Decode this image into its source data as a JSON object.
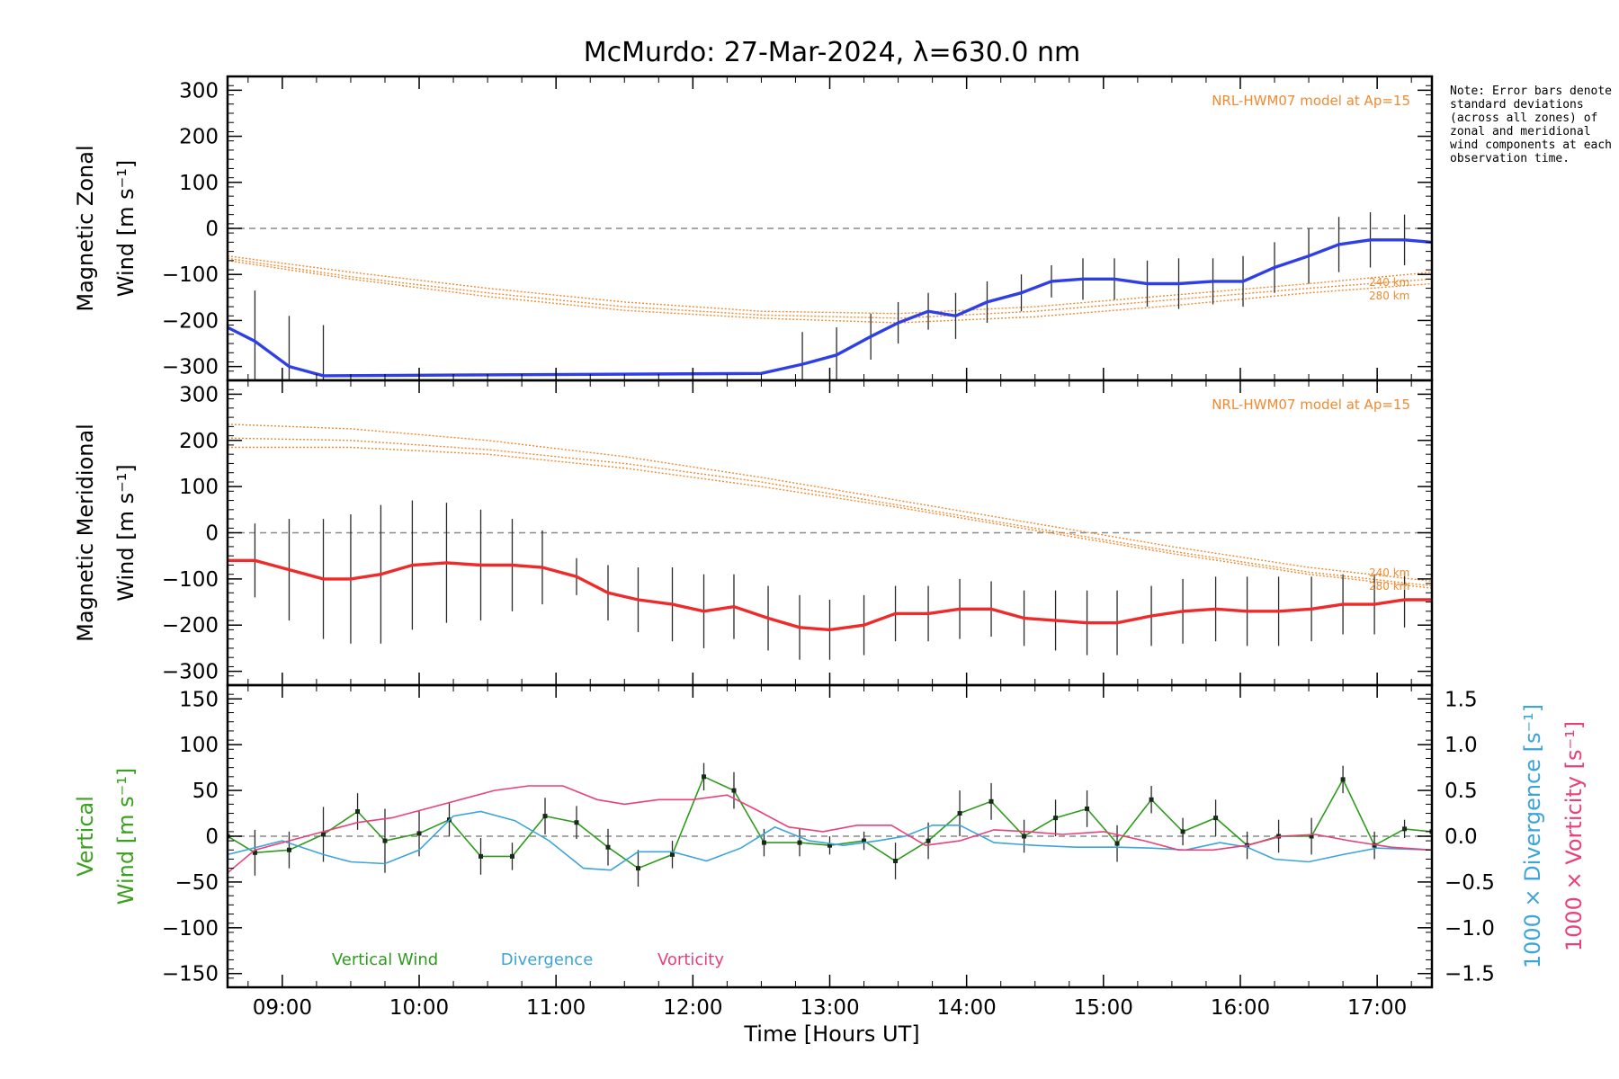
{
  "chart_data": {
    "type": "line",
    "title": "McMurdo: 27-Mar-2024, λ=630.0 nm",
    "xlabel": "Time [Hours UT]",
    "xlim": [
      8.6,
      17.4
    ],
    "xticks": [
      "09:00",
      "10:00",
      "11:00",
      "12:00",
      "13:00",
      "14:00",
      "15:00",
      "16:00",
      "17:00"
    ],
    "note": "Note: Error bars denote standard deviations (across all zones) of zonal and meridional wind components at each observation time.",
    "panels": [
      {
        "id": "zonal",
        "ylabel_line1": "Magnetic Zonal",
        "ylabel_line2": "Wind [m s⁻¹]",
        "ylim": [
          -330,
          330
        ],
        "yticks": [
          "300",
          "200",
          "100",
          "0",
          "−100",
          "−200",
          "−300"
        ],
        "model_label": "NRL-HWM07 model at Ap=15",
        "model_alt_labels": [
          "240 km",
          "280 km"
        ],
        "series": [
          {
            "name": "Magnetic Zonal Wind",
            "color": "#2f3fe6",
            "x": [
              8.6,
              8.8,
              9.05,
              9.3,
              12.5,
              12.8,
              13.05,
              13.3,
              13.5,
              13.72,
              13.92,
              14.15,
              14.4,
              14.62,
              14.85,
              15.08,
              15.32,
              15.55,
              15.8,
              16.02,
              16.25,
              16.5,
              16.72,
              16.95,
              17.2,
              17.4
            ],
            "y": [
              -215,
              -245,
              -300,
              -320,
              -315,
              -295,
              -275,
              -235,
              -205,
              -180,
              -190,
              -160,
              -140,
              -115,
              -110,
              -110,
              -120,
              -120,
              -115,
              -115,
              -85,
              -60,
              -35,
              -25,
              -25,
              -30
            ],
            "err": [
              0,
              110,
              110,
              110,
              0,
              70,
              60,
              50,
              45,
              40,
              50,
              45,
              40,
              35,
              45,
              45,
              50,
              55,
              50,
              55,
              55,
              60,
              60,
              60,
              55,
              50
            ]
          }
        ],
        "models": [
          {
            "x": [
              8.6,
              9.5,
              10.5,
              11.5,
              12.5,
              13.5,
              14.5,
              15.5,
              16.5,
              17.4
            ],
            "y": [
              -60,
              -95,
              -130,
              -160,
              -180,
              -185,
              -170,
              -145,
              -120,
              -95
            ]
          },
          {
            "x": [
              8.6,
              9.5,
              10.5,
              11.5,
              12.5,
              13.5,
              14.5,
              15.5,
              16.5,
              17.4
            ],
            "y": [
              -65,
              -105,
              -140,
              -170,
              -188,
              -195,
              -180,
              -155,
              -130,
              -110
            ]
          },
          {
            "x": [
              8.6,
              9.5,
              10.5,
              11.5,
              12.5,
              13.5,
              14.5,
              15.5,
              16.5,
              17.4
            ],
            "y": [
              -70,
              -110,
              -148,
              -178,
              -195,
              -205,
              -192,
              -168,
              -140,
              -120
            ]
          }
        ]
      },
      {
        "id": "meridional",
        "ylabel_line1": "Magnetic Meridional",
        "ylabel_line2": "Wind [m s⁻¹]",
        "ylim": [
          -330,
          330
        ],
        "yticks": [
          "300",
          "200",
          "100",
          "0",
          "−100",
          "−200",
          "−300"
        ],
        "model_label": "NRL-HWM07 model at Ap=15",
        "model_alt_labels": [
          "240 km",
          "280 km"
        ],
        "series": [
          {
            "name": "Magnetic Meridional Wind",
            "color": "#ee2a2a",
            "x": [
              8.6,
              8.8,
              9.05,
              9.3,
              9.5,
              9.72,
              9.95,
              10.2,
              10.45,
              10.68,
              10.9,
              11.15,
              11.38,
              11.6,
              11.85,
              12.08,
              12.3,
              12.55,
              12.78,
              13.0,
              13.25,
              13.48,
              13.72,
              13.95,
              14.18,
              14.42,
              14.65,
              14.88,
              15.1,
              15.35,
              15.58,
              15.82,
              16.05,
              16.28,
              16.52,
              16.75,
              16.98,
              17.2,
              17.4
            ],
            "y": [
              -60,
              -60,
              -80,
              -100,
              -100,
              -90,
              -70,
              -65,
              -70,
              -70,
              -75,
              -95,
              -130,
              -145,
              -155,
              -170,
              -160,
              -185,
              -205,
              -210,
              -200,
              -175,
              -175,
              -165,
              -165,
              -185,
              -190,
              -195,
              -195,
              -180,
              -170,
              -165,
              -170,
              -170,
              -165,
              -155,
              -155,
              -145,
              -145
            ],
            "err": [
              0,
              80,
              110,
              130,
              140,
              150,
              140,
              130,
              120,
              100,
              80,
              40,
              60,
              70,
              80,
              80,
              70,
              70,
              70,
              65,
              65,
              60,
              60,
              65,
              60,
              60,
              65,
              70,
              70,
              65,
              70,
              70,
              75,
              75,
              70,
              65,
              65,
              60,
              0
            ]
          }
        ],
        "models": [
          {
            "x": [
              8.6,
              9.5,
              10.5,
              11.5,
              12.5,
              13.5,
              14.5,
              15.5,
              16.5,
              17.4
            ],
            "y": [
              235,
              225,
              200,
              165,
              120,
              70,
              20,
              -30,
              -75,
              -105
            ]
          },
          {
            "x": [
              8.6,
              9.5,
              10.5,
              11.5,
              12.5,
              13.5,
              14.5,
              15.5,
              16.5,
              17.4
            ],
            "y": [
              205,
              200,
              180,
              150,
              110,
              60,
              10,
              -40,
              -85,
              -115
            ]
          },
          {
            "x": [
              8.6,
              9.5,
              10.5,
              11.5,
              12.5,
              13.5,
              14.5,
              15.5,
              16.5,
              17.4
            ],
            "y": [
              185,
              185,
              170,
              140,
              100,
              55,
              5,
              -45,
              -90,
              -120
            ]
          }
        ]
      },
      {
        "id": "vertical",
        "ylabel_line1": "Vertical",
        "ylabel_line2": "Wind [m s⁻¹]",
        "ylim": [
          -165,
          165
        ],
        "yticks": [
          "150",
          "100",
          "50",
          "0",
          "−50",
          "−100",
          "−150"
        ],
        "right_ylim": [
          -1.65,
          1.65
        ],
        "right_yticks": [
          "1.5",
          "1.0",
          "0.5",
          "0.0",
          "−0.5",
          "−1.0",
          "−1.5"
        ],
        "right_label_div": "1000 × Divergence [s⁻¹]",
        "right_label_vor": "1000 × Vorticity [s⁻¹]",
        "series": [
          {
            "name": "Vertical Wind",
            "color": "#2e9b1d",
            "axis": "left",
            "x": [
              8.6,
              8.8,
              9.05,
              9.3,
              9.55,
              9.75,
              10.0,
              10.22,
              10.45,
              10.68,
              10.92,
              11.15,
              11.38,
              11.6,
              11.85,
              12.08,
              12.3,
              12.52,
              12.78,
              13.0,
              13.25,
              13.48,
              13.72,
              13.95,
              14.18,
              14.42,
              14.65,
              14.88,
              15.1,
              15.35,
              15.58,
              15.82,
              16.05,
              16.28,
              16.52,
              16.75,
              16.98,
              17.2,
              17.4
            ],
            "y": [
              0,
              -18,
              -15,
              2,
              27,
              -5,
              3,
              18,
              -22,
              -22,
              22,
              15,
              -12,
              -35,
              -20,
              65,
              50,
              -7,
              -7,
              -10,
              -5,
              -27,
              -5,
              25,
              38,
              0,
              20,
              30,
              -8,
              40,
              5,
              20,
              -10,
              0,
              0,
              62,
              -10,
              8,
              5
            ],
            "err": [
              0,
              25,
              20,
              30,
              20,
              35,
              25,
              18,
              20,
              15,
              20,
              18,
              20,
              20,
              15,
              15,
              20,
              15,
              15,
              10,
              10,
              20,
              20,
              25,
              20,
              18,
              20,
              20,
              20,
              15,
              15,
              20,
              15,
              18,
              20,
              15,
              15,
              10,
              0
            ]
          },
          {
            "name": "Divergence",
            "color": "#3da4d8",
            "axis": "right",
            "x": [
              8.6,
              9.0,
              9.3,
              9.5,
              9.75,
              10.0,
              10.25,
              10.45,
              10.7,
              10.95,
              11.2,
              11.4,
              11.6,
              11.85,
              12.1,
              12.35,
              12.6,
              12.85,
              13.1,
              13.35,
              13.55,
              13.75,
              13.95,
              14.2,
              14.5,
              14.8,
              15.1,
              15.35,
              15.6,
              15.85,
              16.05,
              16.25,
              16.5,
              16.75,
              17.0,
              17.4
            ],
            "y": [
              -0.2,
              -0.05,
              -0.2,
              -0.28,
              -0.3,
              -0.15,
              0.22,
              0.27,
              0.17,
              -0.05,
              -0.35,
              -0.37,
              -0.17,
              -0.17,
              -0.27,
              -0.13,
              0.1,
              -0.05,
              -0.1,
              -0.05,
              0.0,
              0.12,
              0.12,
              -0.07,
              -0.1,
              -0.12,
              -0.12,
              -0.13,
              -0.15,
              -0.07,
              -0.12,
              -0.25,
              -0.28,
              -0.2,
              -0.13,
              -0.15
            ]
          },
          {
            "name": "Vorticity",
            "color": "#e8407a",
            "axis": "right",
            "x": [
              8.6,
              8.8,
              9.05,
              9.3,
              9.55,
              9.8,
              10.05,
              10.3,
              10.55,
              10.8,
              11.05,
              11.3,
              11.5,
              11.75,
              12.0,
              12.25,
              12.45,
              12.7,
              12.95,
              13.2,
              13.45,
              13.7,
              13.95,
              14.2,
              14.45,
              14.7,
              15.0,
              15.3,
              15.55,
              15.8,
              16.05,
              16.3,
              16.55,
              16.8,
              17.1,
              17.4
            ],
            "y": [
              -0.4,
              -0.15,
              -0.05,
              0.05,
              0.15,
              0.2,
              0.3,
              0.4,
              0.5,
              0.55,
              0.55,
              0.4,
              0.35,
              0.4,
              0.4,
              0.45,
              0.3,
              0.1,
              0.05,
              0.12,
              0.12,
              -0.1,
              -0.05,
              0.07,
              0.05,
              0.02,
              0.05,
              -0.05,
              -0.15,
              -0.15,
              -0.1,
              0.0,
              0.02,
              -0.05,
              -0.12,
              -0.15
            ]
          }
        ],
        "legend": [
          "Vertical Wind",
          "Divergence",
          "Vorticity"
        ]
      }
    ]
  }
}
